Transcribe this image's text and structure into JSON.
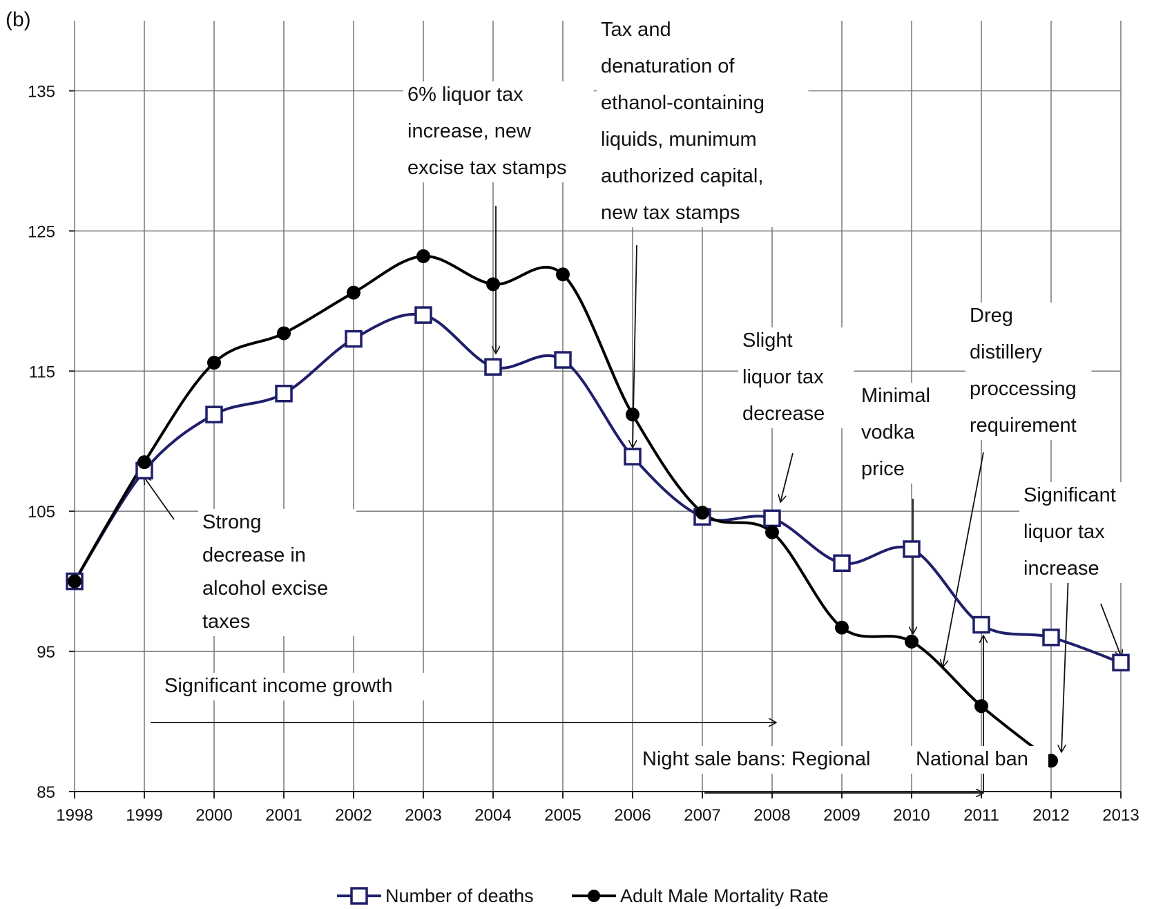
{
  "chart_data": {
    "type": "line",
    "panel_label": "(b)",
    "x": [
      1998,
      1999,
      2000,
      2001,
      2002,
      2003,
      2004,
      2005,
      2006,
      2007,
      2008,
      2009,
      2010,
      2011,
      2012,
      2013
    ],
    "x_tick_labels": [
      "1998",
      "1999",
      "2000",
      "2001",
      "2002",
      "2003",
      "2004",
      "2005",
      "2006",
      "2007",
      "2008",
      "2009",
      "2010",
      "2011",
      "2012",
      "2013"
    ],
    "ylim": [
      85,
      140
    ],
    "y_ticks": [
      85,
      95,
      105,
      115,
      125,
      135
    ],
    "grid": true,
    "legend_position": "bottom",
    "series": [
      {
        "name": "Number of deaths",
        "marker": "open-square",
        "color": "#1f1f6b",
        "values": [
          100,
          107.9,
          111.9,
          113.4,
          117.3,
          119.0,
          115.3,
          115.8,
          108.9,
          104.6,
          104.5,
          101.3,
          102.3,
          96.9,
          96.0,
          94.2
        ]
      },
      {
        "name": "Adult Male Mortality Rate",
        "marker": "filled-circle",
        "color": "#000000",
        "values": [
          100,
          108.5,
          115.6,
          117.7,
          120.6,
          123.2,
          121.2,
          121.9,
          111.9,
          104.9,
          103.5,
          96.7,
          95.7,
          91.1,
          87.2,
          null
        ]
      }
    ],
    "annotations": [
      {
        "id": "strong-decrease",
        "lines": [
          "Strong",
          "decrease  in",
          "alcohol excise",
          "taxes"
        ]
      },
      {
        "id": "liquor-tax-6",
        "lines": [
          "6% liquor tax",
          "increase, new",
          "excise tax stamps"
        ]
      },
      {
        "id": "denaturation",
        "lines": [
          "Tax and",
          "denaturation of",
          "ethanol-containing",
          "liquids, munimum",
          "authorized capital,",
          "new  tax stamps"
        ]
      },
      {
        "id": "slight-decrease",
        "lines": [
          "Slight",
          "liquor tax",
          "decrease"
        ]
      },
      {
        "id": "minimal-vodka",
        "lines": [
          "Minimal",
          "vodka",
          "price"
        ]
      },
      {
        "id": "dreg",
        "lines": [
          "Dreg",
          "distillery",
          "proccessing",
          "requirement"
        ]
      },
      {
        "id": "significant-increase",
        "lines": [
          "Significant",
          "liquor tax",
          "increase"
        ]
      },
      {
        "id": "income-growth",
        "lines": [
          "Significant income  growth"
        ]
      },
      {
        "id": "night-sale-regional",
        "lines": [
          "Night sale bans: Regional"
        ]
      },
      {
        "id": "national-ban",
        "lines": [
          "National ban"
        ]
      }
    ]
  }
}
